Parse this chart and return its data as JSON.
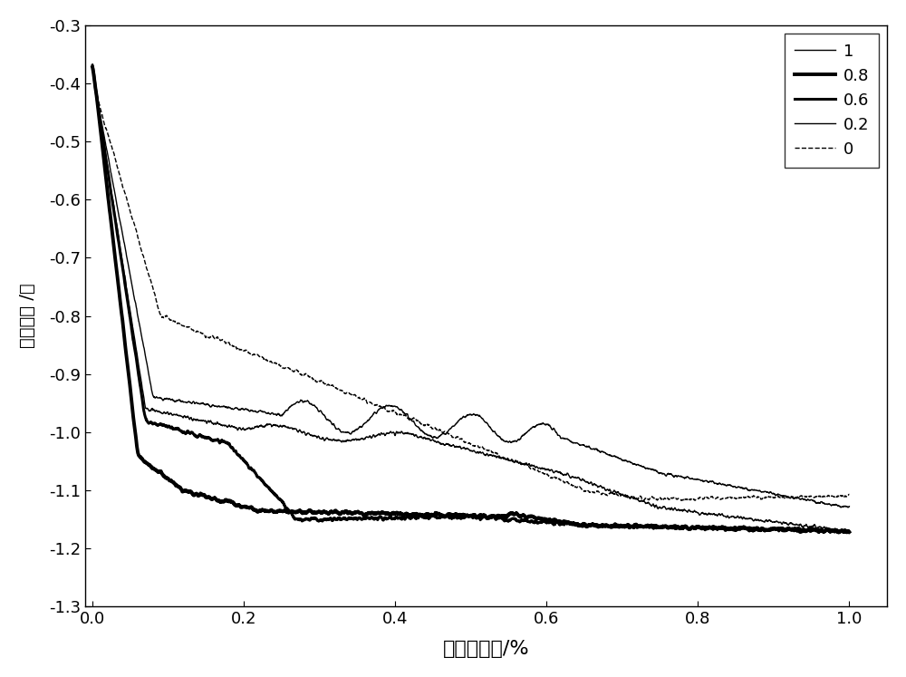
{
  "title": "",
  "xlabel": "消耗电荷量/%",
  "ylabel": "响应电位 /伏",
  "xlim": [
    -0.01,
    1.05
  ],
  "ylim": [
    -1.3,
    -0.3
  ],
  "yticks": [
    -1.3,
    -1.2,
    -1.1,
    -1.0,
    -0.9,
    -0.8,
    -0.7,
    -0.6,
    -0.5,
    -0.4,
    -0.3
  ],
  "xticks": [
    0.0,
    0.2,
    0.4,
    0.6,
    0.8,
    1.0
  ],
  "legend_labels": [
    "1",
    "0.8",
    "0.6",
    "0.2",
    "0"
  ],
  "line_colors": [
    "#000000",
    "#000000",
    "#000000",
    "#000000",
    "#000000"
  ],
  "line_widths": [
    1.0,
    2.8,
    2.2,
    1.0,
    1.0
  ],
  "line_styles": [
    "-",
    "-",
    "-",
    "-",
    "--"
  ],
  "background_color": "#ffffff",
  "xlabel_fontsize": 16,
  "ylabel_fontsize": 14,
  "tick_fontsize": 13,
  "legend_fontsize": 13
}
